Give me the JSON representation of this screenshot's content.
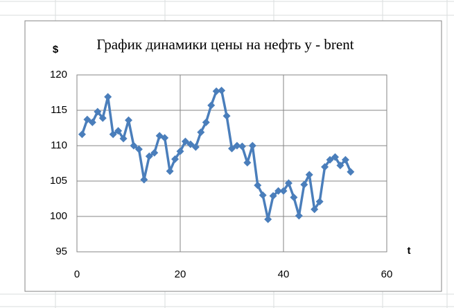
{
  "chart_data": {
    "type": "line",
    "title": "График динамики цены на нефть y - brent",
    "y_label": "$",
    "x_label": "t",
    "x": [
      1,
      2,
      3,
      4,
      5,
      6,
      7,
      8,
      9,
      10,
      11,
      12,
      13,
      14,
      15,
      16,
      17,
      18,
      19,
      20,
      21,
      22,
      23,
      24,
      25,
      26,
      27,
      28,
      29,
      30,
      31,
      32,
      33,
      34,
      35,
      36,
      37,
      38,
      39,
      40,
      41,
      42,
      43,
      44,
      45,
      46,
      47,
      48,
      49,
      50,
      51,
      52,
      53
    ],
    "series": [
      {
        "name": "brent",
        "color": "#4a7ebb",
        "values": [
          111.6,
          113.7,
          113.3,
          114.8,
          113.9,
          116.9,
          111.6,
          112.1,
          111.0,
          113.6,
          110.0,
          109.5,
          105.2,
          108.5,
          109.0,
          111.4,
          111.1,
          106.4,
          108.1,
          109.2,
          110.6,
          110.2,
          109.8,
          111.9,
          113.3,
          115.7,
          117.7,
          117.8,
          114.2,
          109.6,
          110.0,
          109.9,
          107.6,
          110.0,
          104.4,
          103.0,
          99.6,
          102.9,
          103.6,
          103.6,
          104.7,
          102.7,
          100.1,
          104.5,
          105.9,
          101.0,
          102.1,
          107.0,
          108.0,
          108.4,
          107.2,
          108.0,
          106.3
        ]
      }
    ],
    "xlim": [
      0,
      60
    ],
    "xticks": [
      0,
      20,
      40,
      60
    ],
    "ylim": [
      95,
      120
    ],
    "yticks": [
      95,
      100,
      105,
      110,
      115,
      120
    ],
    "grid": true
  }
}
